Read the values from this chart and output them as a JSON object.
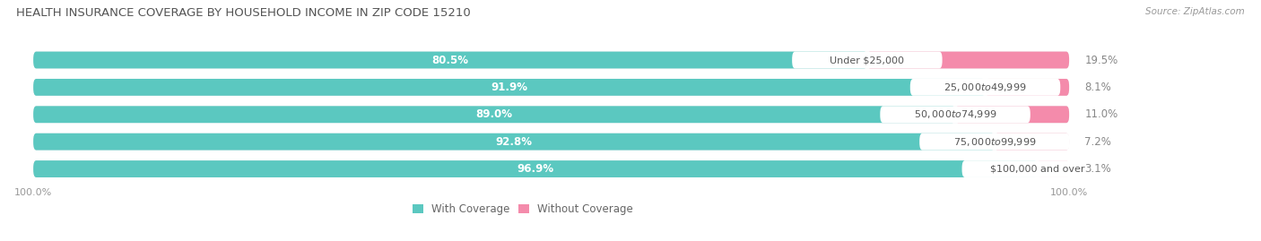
{
  "title": "HEALTH INSURANCE COVERAGE BY HOUSEHOLD INCOME IN ZIP CODE 15210",
  "source": "Source: ZipAtlas.com",
  "categories": [
    "Under $25,000",
    "$25,000 to $49,999",
    "$50,000 to $74,999",
    "$75,000 to $99,999",
    "$100,000 and over"
  ],
  "with_coverage": [
    80.5,
    91.9,
    89.0,
    92.8,
    96.9
  ],
  "without_coverage": [
    19.5,
    8.1,
    11.0,
    7.2,
    3.1
  ],
  "color_with": "#5BC8C0",
  "color_without": "#F48BAB",
  "color_bg_bar": "#E8E8EC",
  "color_bg": "#FFFFFF",
  "bar_height": 0.62,
  "label_fontsize": 8.0,
  "title_fontsize": 9.5,
  "legend_fontsize": 8.5,
  "axis_fontsize": 8,
  "figsize": [
    14.06,
    2.69
  ],
  "dpi": 100
}
